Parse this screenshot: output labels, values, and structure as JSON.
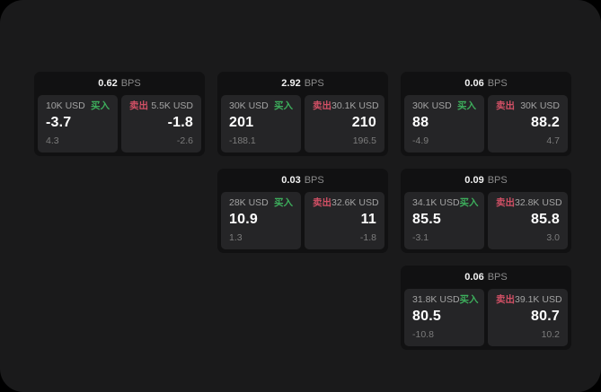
{
  "labels": {
    "bps_unit": "BPS",
    "buy": "买入",
    "sell": "卖出"
  },
  "colors": {
    "backdrop": "#000000",
    "window_bg": "#1a1a1b",
    "card_bg": "#111112",
    "panel_bg": "#252527",
    "text_primary": "#ffffff",
    "text_secondary": "#a3a3a3",
    "text_dim": "#7c7c7c",
    "buy_green": "#3dae5c",
    "sell_red": "#d15065"
  },
  "cards": [
    {
      "row": 1,
      "col": 1,
      "bps": "0.62",
      "buy": {
        "amount": "10K USD",
        "value": "-3.7",
        "delta": "4.3"
      },
      "sell": {
        "amount": "5.5K USD",
        "value": "-1.8",
        "delta": "-2.6"
      }
    },
    {
      "row": 1,
      "col": 2,
      "bps": "2.92",
      "buy": {
        "amount": "30K USD",
        "value": "201",
        "delta": "-188.1"
      },
      "sell": {
        "amount": "30.1K USD",
        "value": "210",
        "delta": "196.5"
      }
    },
    {
      "row": 1,
      "col": 3,
      "bps": "0.06",
      "buy": {
        "amount": "30K USD",
        "value": "88",
        "delta": "-4.9"
      },
      "sell": {
        "amount": "30K USD",
        "value": "88.2",
        "delta": "4.7"
      }
    },
    {
      "row": 2,
      "col": 2,
      "bps": "0.03",
      "buy": {
        "amount": "28K USD",
        "value": "10.9",
        "delta": "1.3"
      },
      "sell": {
        "amount": "32.6K USD",
        "value": "11",
        "delta": "-1.8"
      }
    },
    {
      "row": 2,
      "col": 3,
      "bps": "0.09",
      "buy": {
        "amount": "34.1K USD",
        "value": "85.5",
        "delta": "-3.1"
      },
      "sell": {
        "amount": "32.8K USD",
        "value": "85.8",
        "delta": "3.0"
      }
    },
    {
      "row": 3,
      "col": 3,
      "bps": "0.06",
      "buy": {
        "amount": "31.8K USD",
        "value": "80.5",
        "delta": "-10.8"
      },
      "sell": {
        "amount": "39.1K USD",
        "value": "80.7",
        "delta": "10.2"
      }
    }
  ]
}
